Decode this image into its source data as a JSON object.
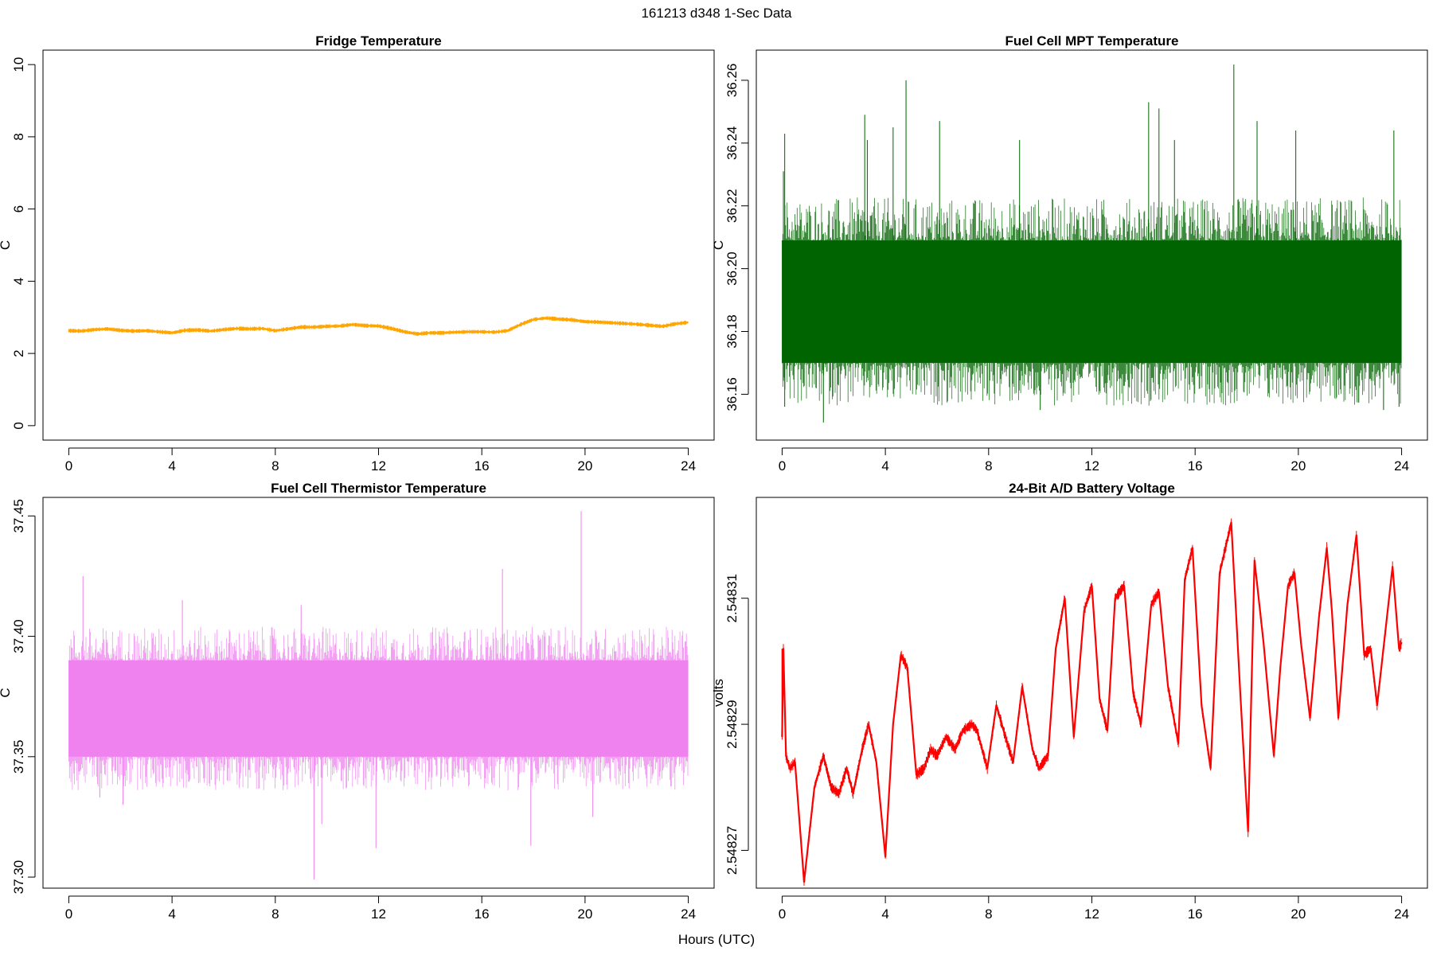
{
  "figure": {
    "suptitle": "161213   d348   1-Sec Data",
    "xlabel": "Hours (UTC)"
  },
  "chart_data": [
    {
      "type": "line",
      "title": "Fridge Temperature",
      "xlabel": "Hours (UTC)",
      "ylabel": "C",
      "xlim": [
        -1,
        25
      ],
      "ylim": [
        -0.4,
        10.4
      ],
      "xticks": [
        0,
        4,
        8,
        12,
        16,
        20,
        24
      ],
      "yticks": [
        0,
        2,
        4,
        6,
        8,
        10
      ],
      "ytick_labels": [
        "0",
        "2",
        "4",
        "6",
        "8",
        "10"
      ],
      "color": "#FFA500",
      "band": 0.04,
      "series": [
        {
          "name": "Fridge Temperature",
          "x": [
            0,
            0.5,
            1,
            1.5,
            2,
            2.5,
            3,
            3.5,
            4,
            4.5,
            5,
            5.5,
            6,
            6.5,
            7,
            7.5,
            8,
            8.5,
            9,
            9.5,
            10,
            10.5,
            11,
            11.5,
            12,
            12.5,
            13,
            13.5,
            14,
            14.5,
            15,
            15.5,
            16,
            16.5,
            17,
            17.5,
            18,
            18.5,
            19,
            19.5,
            20,
            20.5,
            21,
            21.5,
            22,
            22.5,
            23,
            23.5,
            24
          ],
          "values": [
            2.63,
            2.62,
            2.66,
            2.68,
            2.64,
            2.62,
            2.63,
            2.6,
            2.57,
            2.64,
            2.65,
            2.62,
            2.66,
            2.69,
            2.68,
            2.69,
            2.63,
            2.68,
            2.73,
            2.73,
            2.75,
            2.76,
            2.8,
            2.77,
            2.76,
            2.69,
            2.6,
            2.54,
            2.57,
            2.57,
            2.59,
            2.6,
            2.6,
            2.59,
            2.63,
            2.8,
            2.94,
            2.98,
            2.95,
            2.93,
            2.88,
            2.87,
            2.85,
            2.83,
            2.81,
            2.78,
            2.75,
            2.82,
            2.86
          ]
        }
      ]
    },
    {
      "type": "line",
      "title": "Fuel Cell MPT Temperature",
      "xlabel": "Hours (UTC)",
      "ylabel": "C",
      "xlim": [
        -1,
        25
      ],
      "ylim": [
        36.1454,
        36.2696
      ],
      "xticks": [
        0,
        4,
        8,
        12,
        16,
        20,
        24
      ],
      "yticks": [
        36.16,
        36.18,
        36.2,
        36.22,
        36.24,
        36.26
      ],
      "ytick_labels": [
        "36.16",
        "36.18",
        "36.20",
        "36.22",
        "36.24",
        "36.26"
      ],
      "color": "#006400",
      "series": [
        {
          "name": "Fuel Cell MPT Temperature",
          "x": [
            0,
            4,
            8,
            12,
            16,
            20,
            24
          ],
          "band_low": 36.17,
          "band_high": 36.209,
          "mean": 36.19,
          "spikes": [
            {
              "x": 0.05,
              "y": 36.231
            },
            {
              "x": 0.1,
              "y": 36.243
            },
            {
              "x": 0.1,
              "y": 36.156
            },
            {
              "x": 1.6,
              "y": 36.151
            },
            {
              "x": 3.2,
              "y": 36.249
            },
            {
              "x": 3.3,
              "y": 36.241
            },
            {
              "x": 4.3,
              "y": 36.245
            },
            {
              "x": 4.8,
              "y": 36.26
            },
            {
              "x": 6.1,
              "y": 36.247
            },
            {
              "x": 9.2,
              "y": 36.241
            },
            {
              "x": 10.0,
              "y": 36.155
            },
            {
              "x": 14.2,
              "y": 36.253
            },
            {
              "x": 14.6,
              "y": 36.251
            },
            {
              "x": 15.2,
              "y": 36.241
            },
            {
              "x": 17.5,
              "y": 36.265
            },
            {
              "x": 18.4,
              "y": 36.247
            },
            {
              "x": 19.9,
              "y": 36.244
            },
            {
              "x": 23.3,
              "y": 36.155
            },
            {
              "x": 23.7,
              "y": 36.244
            },
            {
              "x": 23.9,
              "y": 36.156
            }
          ]
        }
      ]
    },
    {
      "type": "line",
      "title": "Fuel Cell Thermistor Temperature",
      "xlabel": "Hours (UTC)",
      "ylabel": "C",
      "xlim": [
        -1,
        25
      ],
      "ylim": [
        37.2954,
        37.4577
      ],
      "xticks": [
        0,
        4,
        8,
        12,
        16,
        20,
        24
      ],
      "yticks": [
        37.3,
        37.35,
        37.4,
        37.45
      ],
      "ytick_labels": [
        "37.30",
        "37.35",
        "37.40",
        "37.45"
      ],
      "color": "#EE82EE",
      "series": [
        {
          "name": "Fuel Cell Thermistor Temperature",
          "x": [
            0,
            4,
            8,
            12,
            16,
            20,
            24
          ],
          "band_low": 37.35,
          "band_high": 37.39,
          "mean": 37.37,
          "spikes": [
            {
              "x": 0.55,
              "y": 37.425
            },
            {
              "x": 1.2,
              "y": 37.333
            },
            {
              "x": 2.1,
              "y": 37.33
            },
            {
              "x": 4.4,
              "y": 37.415
            },
            {
              "x": 9.0,
              "y": 37.413
            },
            {
              "x": 9.5,
              "y": 37.299
            },
            {
              "x": 9.8,
              "y": 37.322
            },
            {
              "x": 11.9,
              "y": 37.312
            },
            {
              "x": 16.8,
              "y": 37.428
            },
            {
              "x": 17.9,
              "y": 37.313
            },
            {
              "x": 19.85,
              "y": 37.452
            },
            {
              "x": 20.3,
              "y": 37.325
            }
          ]
        }
      ]
    },
    {
      "type": "line",
      "title": "24-Bit A/D Battery Voltage",
      "xlabel": "Hours (UTC)",
      "ylabel": "volts",
      "xlim": [
        -1,
        25
      ],
      "ylim": [
        2.548264,
        2.548326
      ],
      "xticks": [
        0,
        4,
        8,
        12,
        16,
        20,
        24
      ],
      "yticks": [
        2.54827,
        2.54829,
        2.54831
      ],
      "ytick_labels": [
        "2.54827",
        "2.54829",
        "2.54831"
      ],
      "color": "#FF0000",
      "band": 6e-07,
      "series": [
        {
          "name": "Battery Voltage",
          "x": [
            0,
            0.05,
            0.15,
            0.3,
            0.5,
            0.85,
            1.25,
            1.6,
            1.9,
            2.2,
            2.5,
            2.75,
            3.1,
            3.35,
            3.65,
            4.0,
            4.3,
            4.6,
            4.85,
            5.2,
            5.5,
            5.75,
            6.0,
            6.35,
            6.7,
            7.0,
            7.35,
            7.55,
            7.95,
            8.3,
            8.65,
            8.95,
            9.3,
            9.7,
            9.95,
            10.3,
            10.6,
            10.95,
            11.3,
            11.7,
            12.0,
            12.3,
            12.6,
            12.9,
            13.25,
            13.6,
            13.9,
            14.3,
            14.6,
            14.95,
            15.35,
            15.6,
            15.9,
            16.25,
            16.6,
            16.95,
            17.4,
            17.75,
            18.05,
            18.3,
            18.65,
            19.05,
            19.3,
            19.6,
            19.85,
            20.1,
            20.45,
            20.8,
            21.1,
            21.3,
            21.55,
            21.9,
            22.25,
            22.55,
            22.8,
            23.05,
            23.35,
            23.65,
            23.9,
            24.0
          ],
          "values": [
            2.548288,
            2.548302,
            2.548285,
            2.548283,
            2.548284,
            2.548265,
            2.54828,
            2.548285,
            2.54828,
            2.548279,
            2.548283,
            2.548279,
            2.548286,
            2.54829,
            2.548284,
            2.548269,
            2.54829,
            2.548301,
            2.548299,
            2.548282,
            2.548283,
            2.548286,
            2.548285,
            2.548288,
            2.548286,
            2.548289,
            2.54829,
            2.548289,
            2.548283,
            2.548293,
            2.548288,
            2.548284,
            2.548296,
            2.548286,
            2.548283,
            2.548285,
            2.548302,
            2.54831,
            2.548288,
            2.548308,
            2.548312,
            2.548294,
            2.548289,
            2.54831,
            2.548312,
            2.548295,
            2.54829,
            2.548309,
            2.548311,
            2.548296,
            2.548287,
            2.548313,
            2.548318,
            2.548293,
            2.548283,
            2.548314,
            2.548322,
            2.548295,
            2.548273,
            2.548316,
            2.548303,
            2.548285,
            2.548299,
            2.548312,
            2.548314,
            2.548303,
            2.548291,
            2.548307,
            2.548318,
            2.548308,
            2.548291,
            2.548309,
            2.54832,
            2.548301,
            2.548302,
            2.548293,
            2.548304,
            2.548315,
            2.548302,
            2.548303
          ]
        }
      ]
    }
  ]
}
